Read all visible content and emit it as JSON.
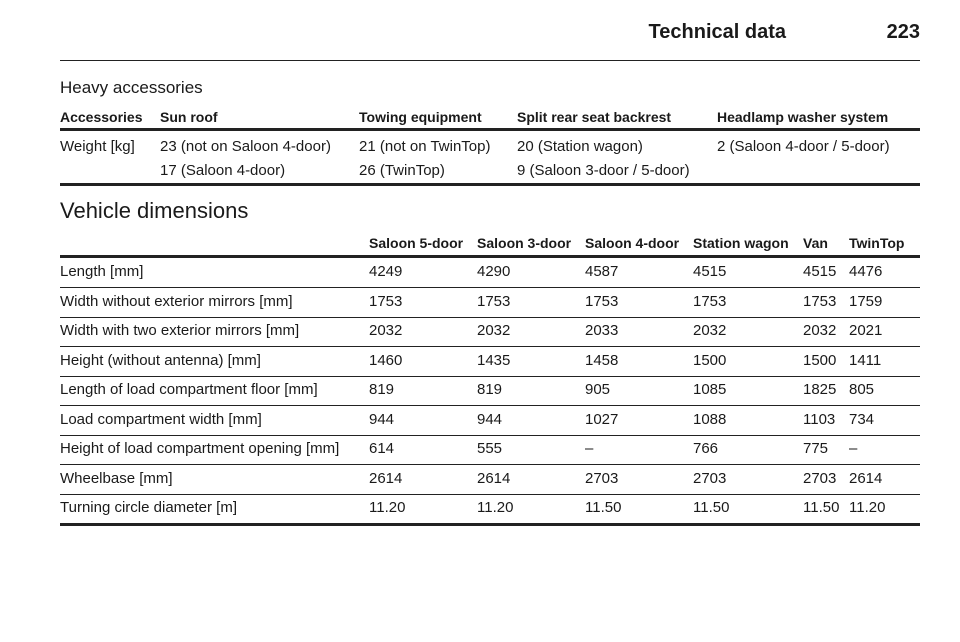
{
  "header": {
    "title": "Technical data",
    "page": "223"
  },
  "accessories": {
    "title": "Heavy accessories",
    "columns": [
      "Accessories",
      "Sun roof",
      "Towing equipment",
      "Split rear seat backrest",
      "Headlamp washer system"
    ],
    "rows": [
      [
        [
          "Weight [kg]"
        ],
        [
          "23 (not on Saloon 4-door)",
          "17 (Saloon 4-door)"
        ],
        [
          "21 (not on TwinTop)",
          "26 (TwinTop)"
        ],
        [
          "20 (Station wagon)",
          "9 (Saloon 3-door / 5-door)"
        ],
        [
          "2 (Saloon 4-door / 5-door)"
        ]
      ]
    ]
  },
  "dimensions": {
    "title": "Vehicle dimensions",
    "columns": [
      "Saloon 5-door",
      "Saloon 3-door",
      "Saloon 4-door",
      "Station wagon",
      "Van",
      "TwinTop"
    ],
    "rows": [
      {
        "label": "Length [mm]",
        "values": [
          "4249",
          "4290",
          "4587",
          "4515",
          "4515",
          "4476"
        ]
      },
      {
        "label": "Width without exterior mirrors [mm]",
        "values": [
          "1753",
          "1753",
          "1753",
          "1753",
          "1753",
          "1759"
        ]
      },
      {
        "label": "Width with two exterior mirrors [mm]",
        "values": [
          "2032",
          "2032",
          "2033",
          "2032",
          "2032",
          "2021"
        ]
      },
      {
        "label": "Height (without antenna) [mm]",
        "values": [
          "1460",
          "1435",
          "1458",
          "1500",
          "1500",
          "1411"
        ]
      },
      {
        "label": "Length of load compartment floor [mm]",
        "values": [
          "819",
          "819",
          "905",
          "1085",
          "1825",
          "805"
        ]
      },
      {
        "label": "Load compartment width [mm]",
        "values": [
          "944",
          "944",
          "1027",
          "1088",
          "1103",
          "734"
        ]
      },
      {
        "label": "Height of load compartment opening [mm]",
        "values": [
          "614",
          "555",
          "–",
          "766",
          "775",
          "–"
        ]
      },
      {
        "label": "Wheelbase [mm]",
        "values": [
          "2614",
          "2614",
          "2703",
          "2703",
          "2703",
          "2614"
        ]
      },
      {
        "label": "Turning circle diameter [m]",
        "values": [
          "11.20",
          "11.20",
          "11.50",
          "11.50",
          "11.50",
          "11.20"
        ]
      }
    ]
  }
}
